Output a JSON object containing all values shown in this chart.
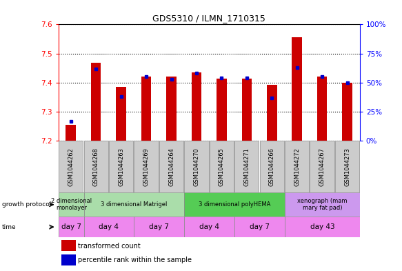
{
  "title": "GDS5310 / ILMN_1710315",
  "samples": [
    "GSM1044262",
    "GSM1044268",
    "GSM1044263",
    "GSM1044269",
    "GSM1044264",
    "GSM1044270",
    "GSM1044265",
    "GSM1044271",
    "GSM1044266",
    "GSM1044272",
    "GSM1044267",
    "GSM1044273"
  ],
  "transformed_counts": [
    7.255,
    7.468,
    7.385,
    7.422,
    7.422,
    7.435,
    7.415,
    7.415,
    7.392,
    7.555,
    7.422,
    7.4
  ],
  "percentile_ranks": [
    17,
    62,
    38,
    55,
    53,
    58,
    54,
    54,
    37,
    63,
    55,
    50
  ],
  "ylim_left": [
    7.2,
    7.6
  ],
  "ylim_right": [
    0,
    100
  ],
  "bar_color": "#cc0000",
  "dot_color": "#0000cc",
  "bar_bottom": 7.2,
  "growth_protocol_groups": [
    {
      "label": "2 dimensional\nmonolayer",
      "start": 0,
      "end": 1,
      "color": "#aaddaa"
    },
    {
      "label": "3 dimensional Matrigel",
      "start": 1,
      "end": 5,
      "color": "#aaddaa"
    },
    {
      "label": "3 dimensional polyHEMA",
      "start": 5,
      "end": 9,
      "color": "#55cc55"
    },
    {
      "label": "xenograph (mam\nmary fat pad)",
      "start": 9,
      "end": 12,
      "color": "#cc99ee"
    }
  ],
  "time_groups": [
    {
      "label": "day 7",
      "start": 0,
      "end": 1
    },
    {
      "label": "day 4",
      "start": 1,
      "end": 3
    },
    {
      "label": "day 7",
      "start": 3,
      "end": 5
    },
    {
      "label": "day 4",
      "start": 5,
      "end": 7
    },
    {
      "label": "day 7",
      "start": 7,
      "end": 9
    },
    {
      "label": "day 43",
      "start": 9,
      "end": 12
    }
  ],
  "time_color": "#ee88ee",
  "sample_bg_color": "#cccccc",
  "legend_labels": [
    "transformed count",
    "percentile rank within the sample"
  ],
  "legend_colors": [
    "#cc0000",
    "#0000cc"
  ]
}
